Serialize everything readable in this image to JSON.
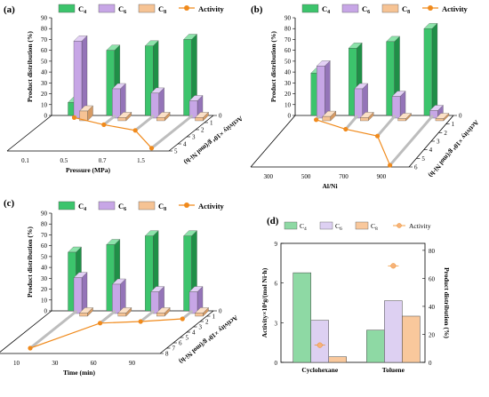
{
  "colors": {
    "c4": "#3cc46c",
    "c4_side": "#1f8f47",
    "c4_top": "#8ce3aa",
    "c6": "#c7a6e6",
    "c6_side": "#9474b8",
    "c6_top": "#e3d0f5",
    "c8": "#f6c394",
    "c8_side": "#d69a63",
    "c8_top": "#fbe0c6",
    "activity": "#f08a1c",
    "d_c4": "#8ed9a4",
    "d_c6": "#ddd0f2",
    "d_c8": "#f9c89c"
  },
  "legend": {
    "c4": "C",
    "c6": "C",
    "c8": "C",
    "sub4": "4",
    "sub6": "6",
    "sub8": "8",
    "activity": "Activity"
  },
  "chart_data": [
    {
      "panel": "(a)",
      "type": "bar",
      "xlabel": "Pressure (MPa)",
      "ylabel": "Product distribution (%)",
      "activity_axis_label": "Activity ×10⁴ g/(mol Ni·h)",
      "categories": [
        "0.1",
        "0.5",
        "0.7",
        "1.5"
      ],
      "ylim": [
        0,
        90
      ],
      "yticks": [
        0,
        10,
        20,
        30,
        40,
        50,
        60,
        70,
        80,
        90
      ],
      "activity_ticks": [
        0,
        1,
        2,
        3,
        4,
        5
      ],
      "series": [
        {
          "name": "C4",
          "values": [
            12,
            60,
            64,
            70
          ]
        },
        {
          "name": "C6",
          "values": [
            71,
            27,
            23,
            16
          ]
        },
        {
          "name": "C8",
          "values": [
            9,
            3,
            3,
            3
          ]
        },
        {
          "name": "Activity",
          "values": [
            0.3,
            1.3,
            2.1,
            4.6
          ]
        }
      ]
    },
    {
      "panel": "(b)",
      "type": "bar",
      "xlabel": "Al/Ni",
      "ylabel": "Product distribution (%)",
      "activity_axis_label": "Activity ×10⁴ g/(mol Ni·h)",
      "categories": [
        "300",
        "500",
        "700",
        "900"
      ],
      "ylim": [
        0,
        90
      ],
      "yticks": [
        0,
        10,
        20,
        30,
        40,
        50,
        60,
        70,
        80,
        90
      ],
      "activity_ticks": [
        0,
        1,
        2,
        3,
        4,
        5,
        6
      ],
      "series": [
        {
          "name": "C4",
          "values": [
            39,
            62,
            68,
            80
          ]
        },
        {
          "name": "C6",
          "values": [
            48,
            27,
            20,
            7
          ]
        },
        {
          "name": "C8",
          "values": [
            4,
            3,
            2,
            2
          ]
        },
        {
          "name": "Activity",
          "values": [
            0.5,
            1.6,
            2.4,
            5.8
          ]
        }
      ]
    },
    {
      "panel": "(c)",
      "type": "bar",
      "xlabel": "Time (min)",
      "ylabel": "Product distribution (%)",
      "activity_axis_label": "Activity ×10⁴ g/(mol Ni·h)",
      "categories": [
        "10",
        "30",
        "60",
        "90"
      ],
      "ylim": [
        0,
        90
      ],
      "yticks": [
        0,
        10,
        20,
        30,
        40,
        50,
        60,
        70,
        80,
        90
      ],
      "activity_ticks": [
        0,
        1,
        2,
        3,
        4,
        5,
        6,
        7,
        8
      ],
      "series": [
        {
          "name": "C4",
          "values": [
            54,
            61,
            69,
            69
          ]
        },
        {
          "name": "C6",
          "values": [
            33,
            27,
            20,
            20
          ]
        },
        {
          "name": "C8",
          "values": [
            3,
            3,
            3,
            3
          ]
        },
        {
          "name": "Activity",
          "values": [
            7.0,
            2.3,
            2.0,
            1.5
          ]
        }
      ]
    },
    {
      "panel": "(d)",
      "type": "bar",
      "ylabel": "Activity×10⁴g/(mol Ni·h)",
      "y2label": "Product distribution (%)",
      "categories": [
        "Cyclohexane",
        "Toluene"
      ],
      "ylim": [
        0,
        9
      ],
      "yticks": [
        0,
        3,
        6,
        9
      ],
      "y2lim": [
        0,
        85
      ],
      "y2ticks": [
        0,
        20,
        40,
        60,
        80
      ],
      "series": [
        {
          "name": "C4",
          "values": [
            64,
            23
          ],
          "axis": "right"
        },
        {
          "name": "C6",
          "values": [
            30,
            44
          ],
          "axis": "right"
        },
        {
          "name": "C8",
          "values": [
            4,
            33
          ],
          "axis": "right"
        },
        {
          "name": "Activity",
          "values": [
            1.3,
            7.3
          ],
          "axis": "left"
        }
      ]
    }
  ]
}
